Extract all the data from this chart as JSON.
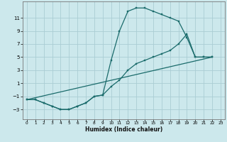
{
  "xlabel": "Humidex (Indice chaleur)",
  "background_color": "#cce8ec",
  "grid_color": "#aacdd4",
  "line_color": "#1a6b6b",
  "xlim": [
    -0.5,
    23.5
  ],
  "ylim": [
    -4.5,
    13.5
  ],
  "xticks": [
    0,
    1,
    2,
    3,
    4,
    5,
    6,
    7,
    8,
    9,
    10,
    11,
    12,
    13,
    14,
    15,
    16,
    17,
    18,
    19,
    20,
    21,
    22,
    23
  ],
  "yticks": [
    -3,
    -1,
    1,
    3,
    5,
    7,
    9,
    11
  ],
  "line1_x": [
    0,
    1,
    2,
    3,
    4,
    5,
    6,
    7,
    8,
    9,
    10,
    11,
    12,
    13,
    14,
    15,
    16,
    17,
    18,
    19,
    20,
    21,
    22
  ],
  "line1_y": [
    -1.5,
    -1.5,
    -2.0,
    -2.5,
    -3.0,
    -3.0,
    -2.5,
    -2.0,
    -1.0,
    -0.8,
    4.5,
    9.0,
    12.0,
    12.5,
    12.5,
    12.0,
    11.5,
    11.0,
    10.5,
    8.0,
    5.0,
    5.0,
    5.0
  ],
  "line2_x": [
    0,
    1,
    2,
    3,
    4,
    5,
    6,
    7,
    8,
    9,
    10,
    11,
    12,
    13,
    14,
    15,
    16,
    17,
    18,
    19,
    20,
    21,
    22
  ],
  "line2_y": [
    -1.5,
    -1.5,
    -2.0,
    -2.5,
    -3.0,
    -3.0,
    -2.5,
    -2.0,
    -1.0,
    -0.8,
    0.5,
    1.5,
    3.0,
    4.0,
    4.5,
    5.0,
    5.5,
    6.0,
    7.0,
    8.5,
    5.0,
    5.0,
    5.0
  ],
  "line3_x": [
    0,
    22
  ],
  "line3_y": [
    -1.5,
    5.0
  ],
  "xlabel_fontsize": 5.5,
  "tick_fontsize_x": 4.2,
  "tick_fontsize_y": 5.0
}
